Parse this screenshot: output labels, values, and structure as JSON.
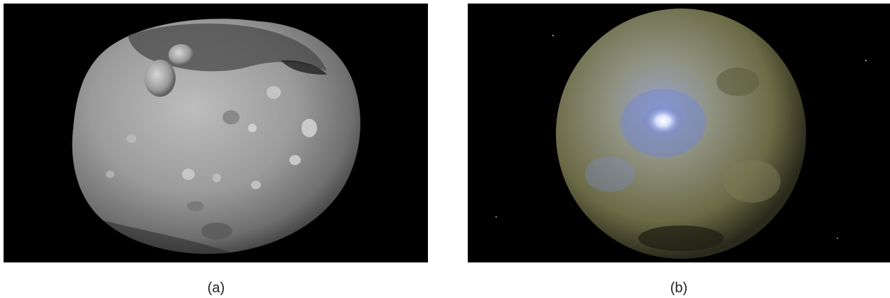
{
  "figure": {
    "panels": [
      {
        "caption": "(a)",
        "subject": "gray-cratered-asteroid-image",
        "colors": {
          "background": "#000000",
          "body": "#9b9b9b",
          "shadow": "#3a3a3a",
          "highlight": "#d8d8d8"
        }
      },
      {
        "caption": "(b)",
        "subject": "false-color-dwarf-planet-image",
        "colors": {
          "background": "#000000",
          "body": "#8f9180",
          "bluish": "#8a9ad8",
          "bright-spot": "#ffffff",
          "olive": "#6b6a45"
        }
      }
    ]
  }
}
